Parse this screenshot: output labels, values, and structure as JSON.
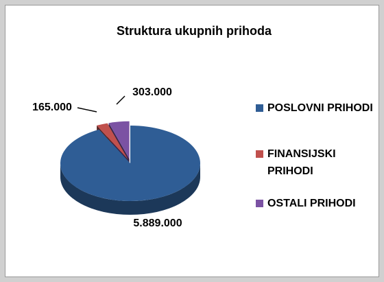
{
  "chart_data": {
    "type": "pie",
    "title": "Struktura ukupnih prihoda",
    "categories": [
      "POSLOVNI PRIHODI",
      "FINANSIJSKI PRIHODI",
      "OSTALI PRIHODI"
    ],
    "values": [
      5889000,
      165000,
      303000
    ],
    "value_labels": [
      "5.889.000",
      "165.000",
      "303.000"
    ],
    "colors": [
      "#2f5d95",
      "#c0504d",
      "#7b52a3"
    ],
    "legend": "right"
  }
}
